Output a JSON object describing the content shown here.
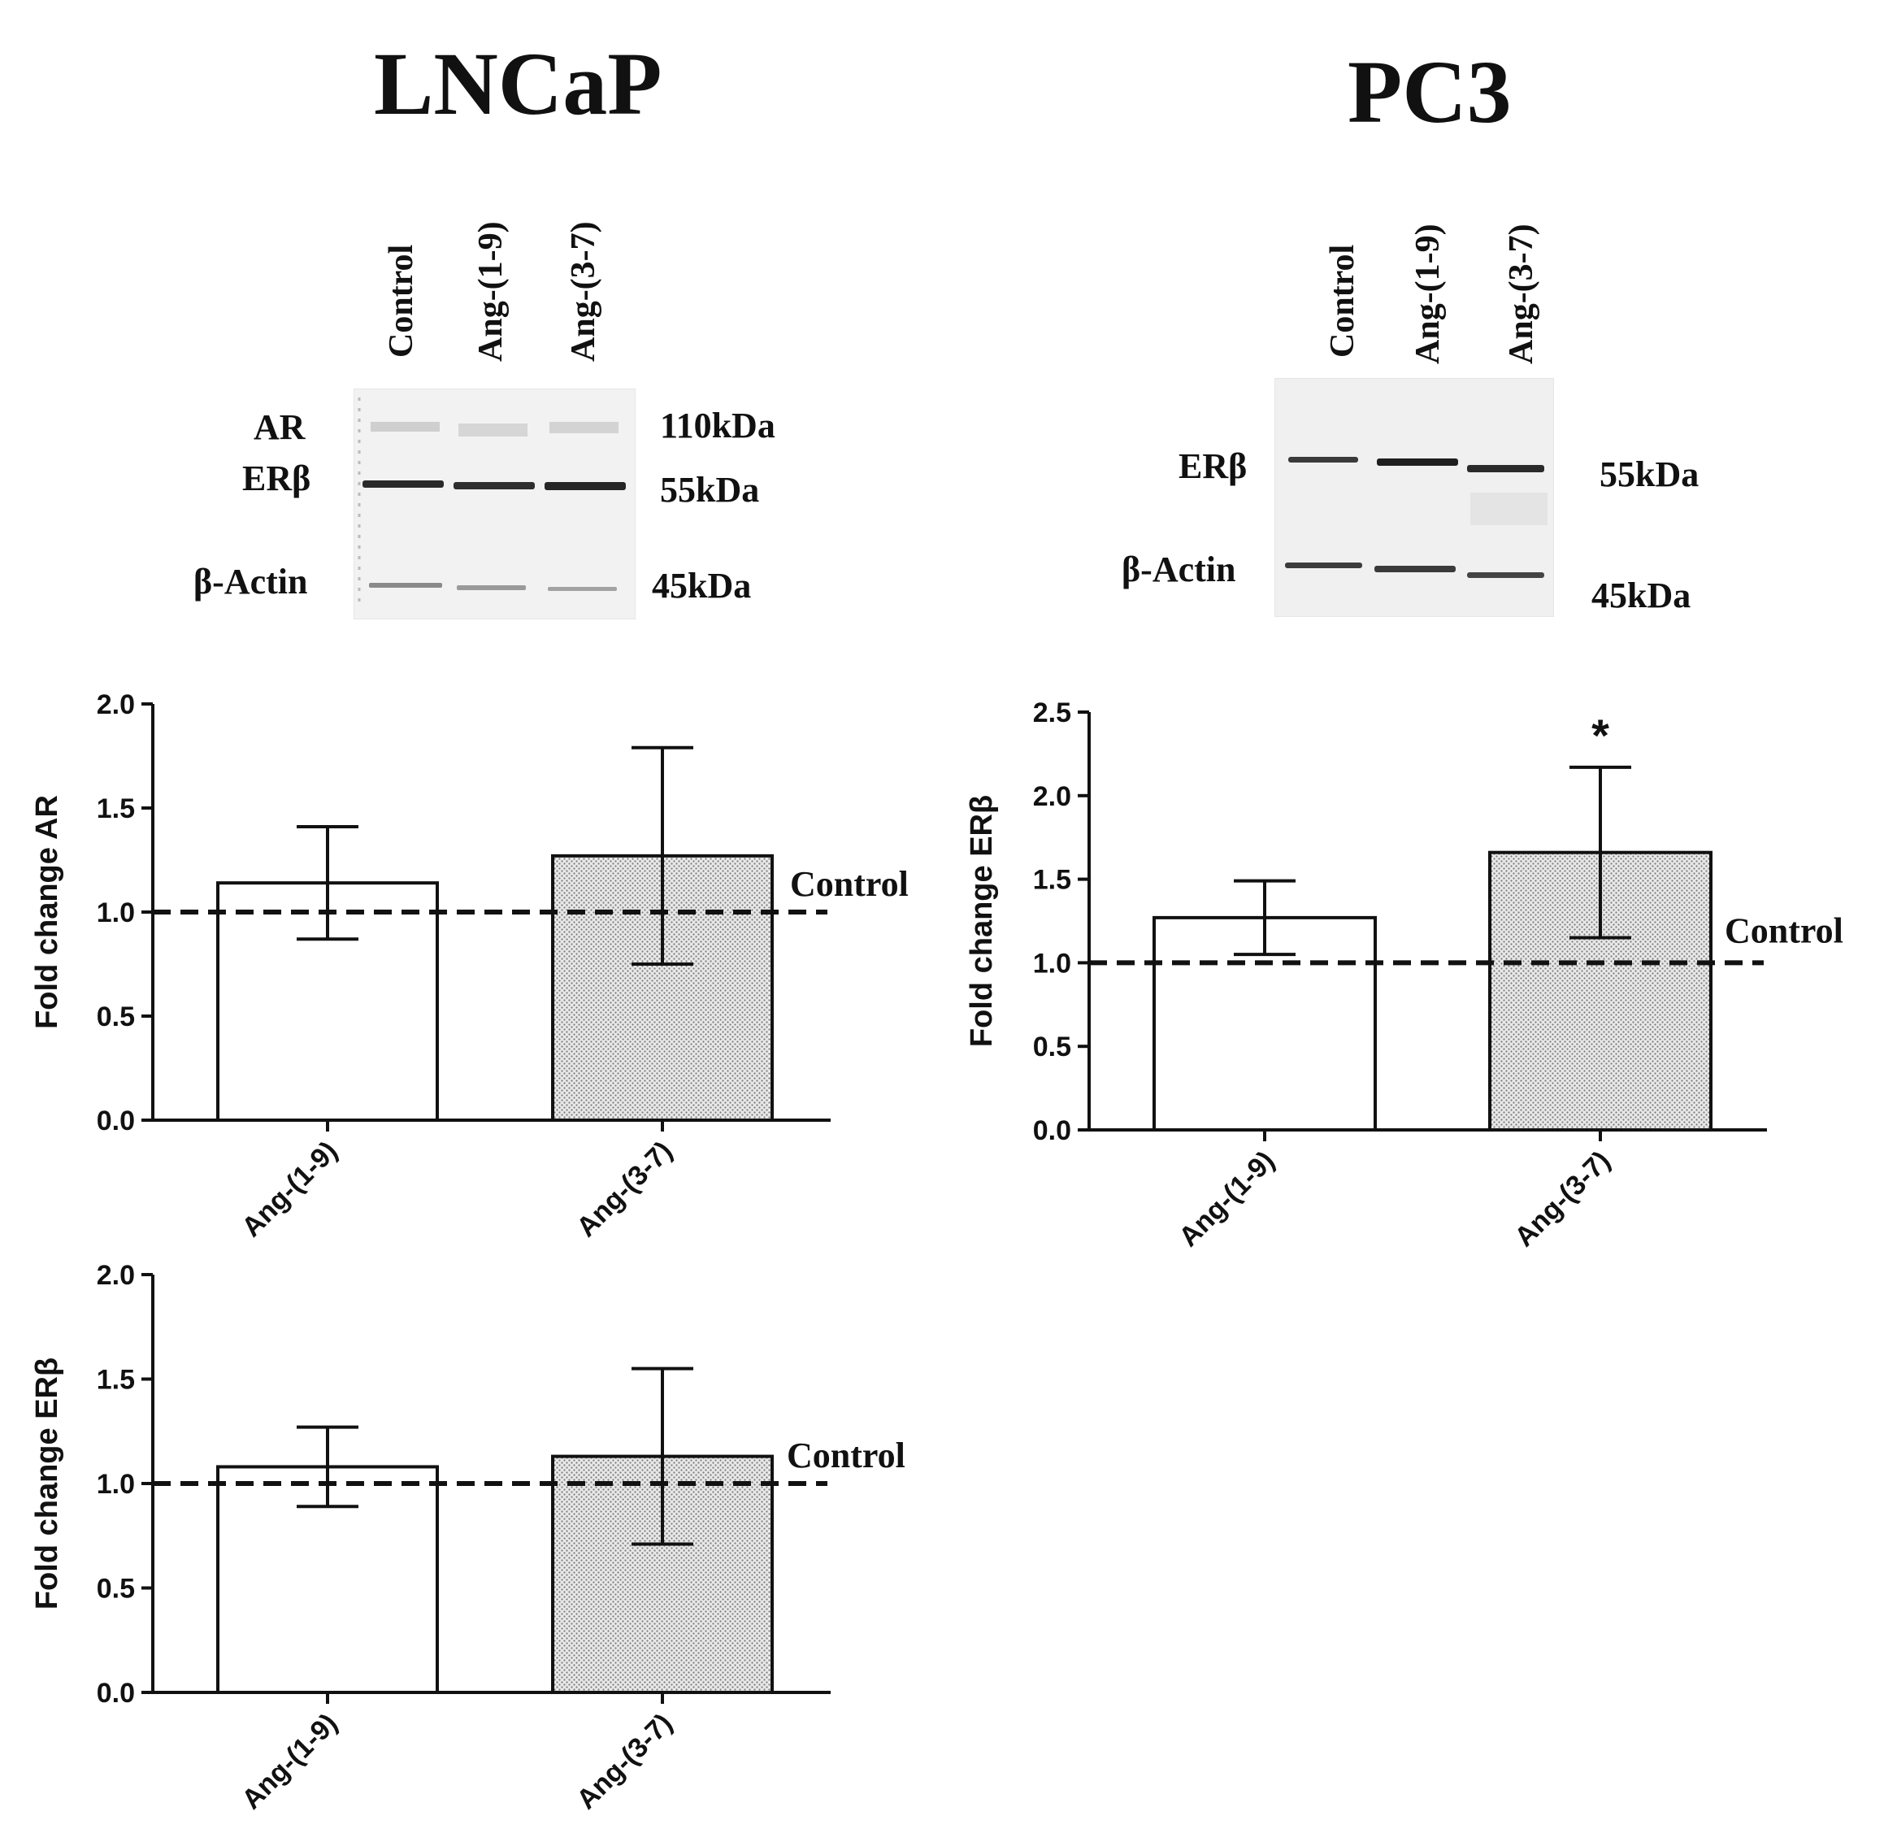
{
  "panels": {
    "lncap": {
      "title": "LNCaP",
      "lanes": [
        "Control",
        "Ang-(1-9)",
        "Ang-(3-7)"
      ],
      "bands": [
        {
          "protein": "AR",
          "size": "110kDa"
        },
        {
          "protein": "ERβ",
          "size": "55kDa"
        },
        {
          "protein": "β-Actin",
          "size": "45kDa"
        }
      ]
    },
    "pc3": {
      "title": "PC3",
      "lanes": [
        "Control",
        "Ang-(1-9)",
        "Ang-(3-7)"
      ],
      "bands": [
        {
          "protein": "ERβ",
          "size": "55kDa"
        },
        {
          "protein": "β-Actin",
          "size": "45kDa"
        }
      ]
    }
  },
  "colors": {
    "bar_plain": "#ffffff",
    "bar_dotted": "#d9d9d9",
    "stroke": "#111111"
  },
  "chart_data": [
    {
      "id": "lncap-ar",
      "type": "bar",
      "categories": [
        "Ang-(1-9)",
        "Ang-(3-7)"
      ],
      "values": [
        1.14,
        1.27
      ],
      "errors": [
        0.27,
        0.52
      ],
      "ylabel": "Fold change AR",
      "ylim": [
        0,
        2.0
      ],
      "yticks": [
        "0.0",
        "0.5",
        "1.0",
        "1.5",
        "2.0"
      ],
      "reference": {
        "value": 1.0,
        "label": "Control"
      },
      "annotation": ""
    },
    {
      "id": "lncap-erb",
      "type": "bar",
      "categories": [
        "Ang-(1-9)",
        "Ang-(3-7)"
      ],
      "values": [
        1.08,
        1.13
      ],
      "errors": [
        0.19,
        0.42
      ],
      "ylabel": "Fold change ERβ",
      "ylim": [
        0,
        2.0
      ],
      "yticks": [
        "0.0",
        "0.5",
        "1.0",
        "1.5",
        "2.0"
      ],
      "reference": {
        "value": 1.0,
        "label": "Control"
      },
      "annotation": ""
    },
    {
      "id": "pc3-erb",
      "type": "bar",
      "categories": [
        "Ang-(1-9)",
        "Ang-(3-7)"
      ],
      "values": [
        1.27,
        1.66
      ],
      "errors": [
        0.22,
        0.51
      ],
      "ylabel": "Fold change ERβ",
      "ylim": [
        0,
        2.5
      ],
      "yticks": [
        "0.0",
        "0.5",
        "1.0",
        "1.5",
        "2.0",
        "2.5"
      ],
      "reference": {
        "value": 1.0,
        "label": "Control"
      },
      "annotation": "*"
    }
  ]
}
